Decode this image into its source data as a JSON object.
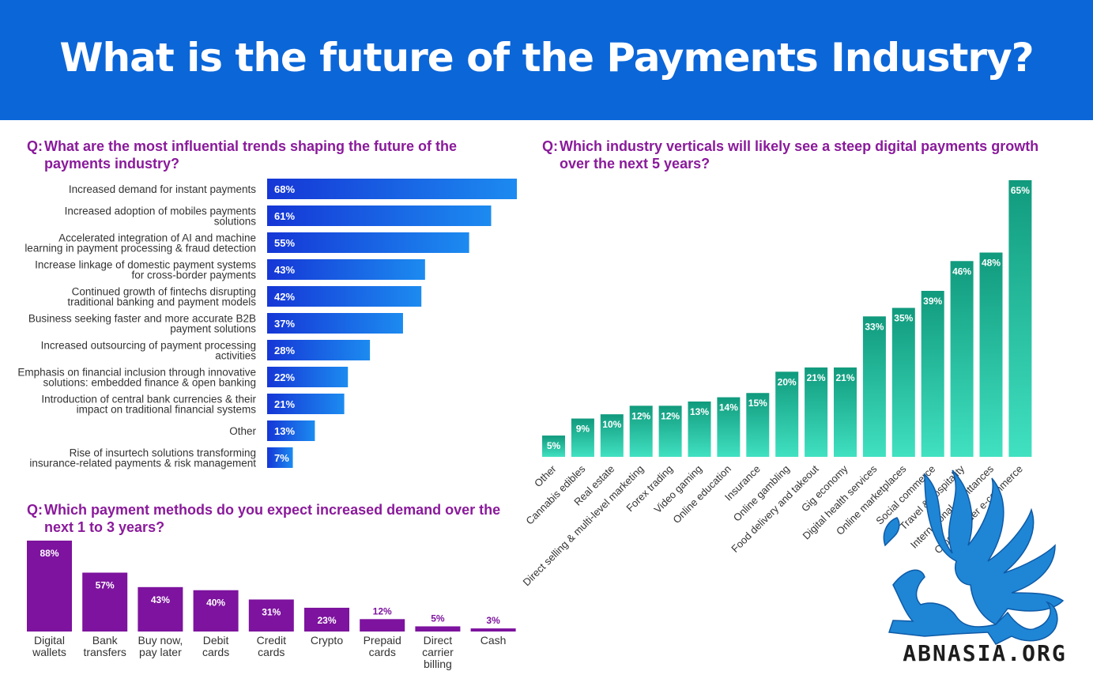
{
  "header": {
    "title": "What is the future of the Payments Industry?"
  },
  "colors": {
    "header_bg": "#0b66d8",
    "question_text": "#8a1a9b",
    "trend_bar_dark": "#1536d6",
    "trend_bar_light": "#1c8bf0",
    "vertical_bar_dark": "#119a7d",
    "vertical_bar_light": "#40e1c1",
    "method_bar": "#7d139e",
    "watermark_blue": "#1f86d6"
  },
  "questions": {
    "trends": {
      "prefix": "Q:",
      "line1": "What are the most influential trends shaping the future of the",
      "line2": "payments industry?"
    },
    "verticals": {
      "prefix": "Q:",
      "line1": "Which industry verticals will likely see a steep digital payments growth",
      "line2": "over the next 5 years?"
    },
    "methods": {
      "prefix": "Q:",
      "line1": "Which payment methods do you expect increased demand over the",
      "line2": "next 1 to 3 years?"
    }
  },
  "chart_data": [
    {
      "type": "bar",
      "orientation": "horizontal",
      "title": "What are the most influential trends shaping the future of the payments industry?",
      "unit": "%",
      "categories": [
        [
          "Increased demand for instant payments"
        ],
        [
          "Increased adoption of mobiles payments",
          "solutions"
        ],
        [
          "Accelerated integration of AI and machine",
          "learning in payment processing & fraud detection"
        ],
        [
          "Increase linkage of domestic payment systems",
          "for cross-border payments"
        ],
        [
          "Continued growth of fintechs disrupting",
          "traditional banking and payment models"
        ],
        [
          "Business seeking faster and more accurate B2B",
          "payment solutions"
        ],
        [
          "Increased outsourcing of payment processing",
          "activities"
        ],
        [
          "Emphasis on financial inclusion through innovative",
          "solutions: embedded finance & open banking"
        ],
        [
          "Introduction of central bank currencies  & their",
          "impact on traditional financial systems"
        ],
        [
          "Other"
        ],
        [
          "Rise of insurtech solutions transforming",
          "insurance-related payments & risk management"
        ]
      ],
      "values": [
        68,
        61,
        55,
        43,
        42,
        37,
        28,
        22,
        21,
        13,
        7
      ],
      "labels": [
        "68%",
        "61%",
        "55%",
        "43%",
        "42%",
        "37%",
        "28%",
        "22%",
        "21%",
        "13%",
        "7%"
      ],
      "xlim": [
        0,
        68
      ]
    },
    {
      "type": "bar",
      "orientation": "vertical",
      "title": "Which industry verticals will likely see a steep digital payments growth over the next 5 years?",
      "unit": "%",
      "categories": [
        "Other",
        "Cannabis edibles",
        "Real estate",
        "Direct selling & multi-level marketing",
        "Forex trading",
        "Video gaming",
        "Online education",
        "Insurance",
        "Online gambling",
        "Food delivery and takeout",
        "Gig economy",
        "Digital health services",
        "Online marketplaces",
        "Social commerce",
        "Travel & hospitality",
        "International remittances",
        "Cross-border e-commerce"
      ],
      "values": [
        5,
        9,
        10,
        12,
        12,
        13,
        14,
        15,
        20,
        21,
        21,
        33,
        35,
        39,
        46,
        48,
        65
      ],
      "labels": [
        "5%",
        "9%",
        "10%",
        "12%",
        "12%",
        "13%",
        "14%",
        "15%",
        "20%",
        "21%",
        "21%",
        "33%",
        "35%",
        "39%",
        "46%",
        "48%",
        "65%"
      ],
      "ylim": [
        0,
        65
      ]
    },
    {
      "type": "bar",
      "orientation": "vertical",
      "title": "Which payment methods do you expect increased demand over the next 1 to 3 years?",
      "unit": "%",
      "categories": [
        [
          "Digital",
          "wallets"
        ],
        [
          "Bank",
          "transfers"
        ],
        [
          "Buy now,",
          "pay later"
        ],
        [
          "Debit",
          "cards"
        ],
        [
          "Credit",
          "cards"
        ],
        [
          "Crypto"
        ],
        [
          "Prepaid",
          "cards"
        ],
        [
          "Direct",
          "carrier",
          "billing"
        ],
        [
          "Cash"
        ]
      ],
      "values": [
        88,
        57,
        43,
        40,
        31,
        23,
        12,
        5,
        3
      ],
      "labels": [
        "88%",
        "57%",
        "43%",
        "40%",
        "31%",
        "23%",
        "12%",
        "5%",
        "3%"
      ],
      "ylim": [
        0,
        88
      ]
    }
  ],
  "watermark": {
    "text": "ABNASIA.ORG",
    "icon": "griffin-logo"
  }
}
